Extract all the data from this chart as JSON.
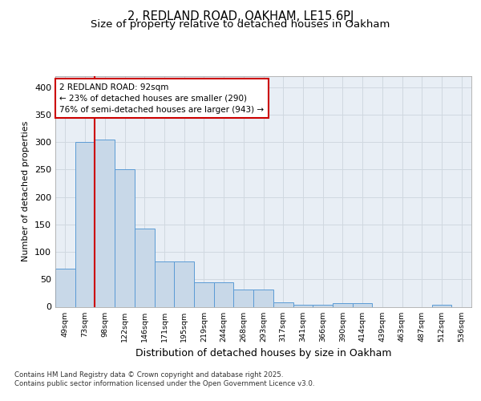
{
  "title1": "2, REDLAND ROAD, OAKHAM, LE15 6PJ",
  "title2": "Size of property relative to detached houses in Oakham",
  "xlabel": "Distribution of detached houses by size in Oakham",
  "ylabel": "Number of detached properties",
  "categories": [
    "49sqm",
    "73sqm",
    "98sqm",
    "122sqm",
    "146sqm",
    "171sqm",
    "195sqm",
    "219sqm",
    "244sqm",
    "268sqm",
    "293sqm",
    "317sqm",
    "341sqm",
    "366sqm",
    "390sqm",
    "414sqm",
    "439sqm",
    "463sqm",
    "487sqm",
    "512sqm",
    "536sqm"
  ],
  "values": [
    70,
    300,
    305,
    250,
    143,
    83,
    83,
    44,
    44,
    32,
    32,
    8,
    3,
    3,
    6,
    6,
    0,
    0,
    0,
    3,
    0
  ],
  "bar_color": "#c8d8e8",
  "bar_edge_color": "#5b9bd5",
  "red_line_index": 1.5,
  "annotation_text": "2 REDLAND ROAD: 92sqm\n← 23% of detached houses are smaller (290)\n76% of semi-detached houses are larger (943) →",
  "annotation_box_color": "#ffffff",
  "annotation_box_edge": "#cc0000",
  "red_line_color": "#cc0000",
  "grid_color": "#d0d8e0",
  "plot_bg_color": "#e8eef5",
  "footer_line1": "Contains HM Land Registry data © Crown copyright and database right 2025.",
  "footer_line2": "Contains public sector information licensed under the Open Government Licence v3.0.",
  "ylim": [
    0,
    420
  ],
  "yticks": [
    0,
    50,
    100,
    150,
    200,
    250,
    300,
    350,
    400
  ],
  "title1_fontsize": 10.5,
  "title2_fontsize": 9.5,
  "ann_fontsize": 7.5,
  "ylabel_fontsize": 8,
  "xlabel_fontsize": 9,
  "footer_fontsize": 6.2
}
